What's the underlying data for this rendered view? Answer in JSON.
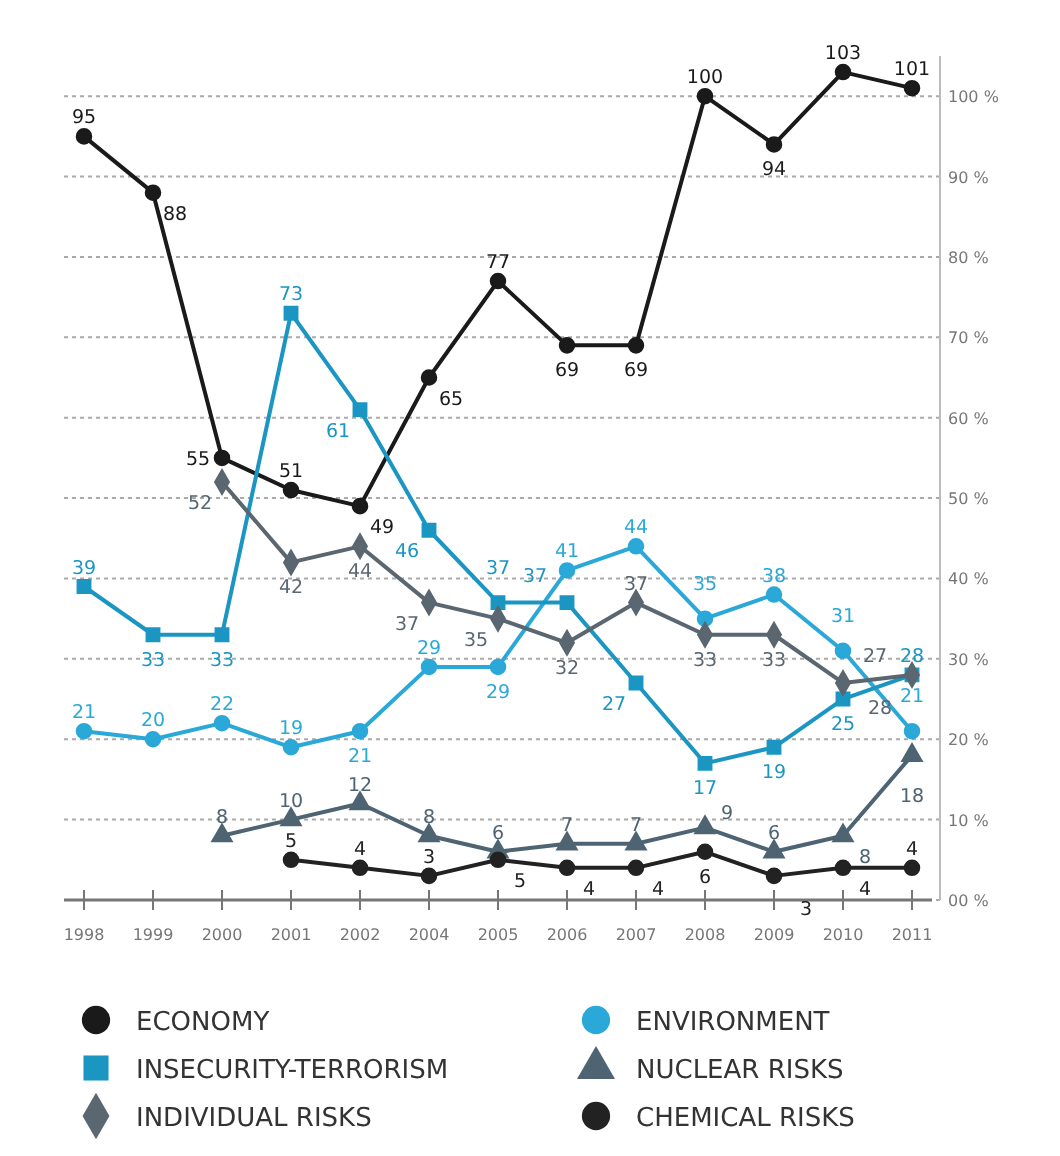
{
  "chart_data": {
    "type": "line",
    "categories": [
      "1998",
      "1999",
      "2000",
      "2001",
      "2002",
      "2004",
      "2005",
      "2006",
      "2007",
      "2008",
      "2009",
      "2010",
      "2011"
    ],
    "series": [
      {
        "name": "ECONOMY",
        "color": "#1a1a1a",
        "marker": "circle",
        "values": [
          95,
          88,
          55,
          51,
          49,
          65,
          77,
          69,
          69,
          100,
          94,
          103,
          101
        ]
      },
      {
        "name": "ENVIRONMENT",
        "color": "#2aa8d8",
        "marker": "circle",
        "values": [
          21,
          20,
          22,
          19,
          21,
          29,
          29,
          41,
          44,
          35,
          38,
          31,
          21
        ]
      },
      {
        "name": "INSECURITY-TERRORISM",
        "color": "#1b96c2",
        "marker": "square",
        "values": [
          39,
          33,
          33,
          73,
          61,
          46,
          37,
          37,
          27,
          17,
          19,
          25,
          28
        ]
      },
      {
        "name": "NUCLEAR RISKS",
        "color": "#4e6472",
        "marker": "triangle",
        "values": [
          null,
          null,
          8,
          10,
          12,
          8,
          6,
          7,
          7,
          9,
          6,
          8,
          18
        ]
      },
      {
        "name": "INDIVIDUAL RISKS",
        "color": "#5a6670",
        "marker": "diamond",
        "values": [
          null,
          null,
          52,
          42,
          44,
          37,
          35,
          32,
          37,
          33,
          33,
          27,
          28
        ]
      },
      {
        "name": "CHEMICAL RISKS",
        "color": "#222222",
        "marker": "circle",
        "values": [
          null,
          null,
          null,
          5,
          4,
          3,
          5,
          4,
          4,
          6,
          3,
          4,
          4
        ]
      }
    ],
    "ylim": [
      0,
      105
    ],
    "yticks": [
      {
        "value": 0,
        "label": "00 %"
      },
      {
        "value": 10,
        "label": "10 %"
      },
      {
        "value": 20,
        "label": "20 %"
      },
      {
        "value": 30,
        "label": "30 %"
      },
      {
        "value": 40,
        "label": "40 %"
      },
      {
        "value": 50,
        "label": "50 %"
      },
      {
        "value": 60,
        "label": "60 %"
      },
      {
        "value": 70,
        "label": "70 %"
      },
      {
        "value": 80,
        "label": "80 %"
      },
      {
        "value": 90,
        "label": "90 %"
      },
      {
        "value": 100,
        "label": "100 %"
      }
    ],
    "grid": "y",
    "legend": "bottom",
    "data_labels": true,
    "line_style": "solid"
  }
}
